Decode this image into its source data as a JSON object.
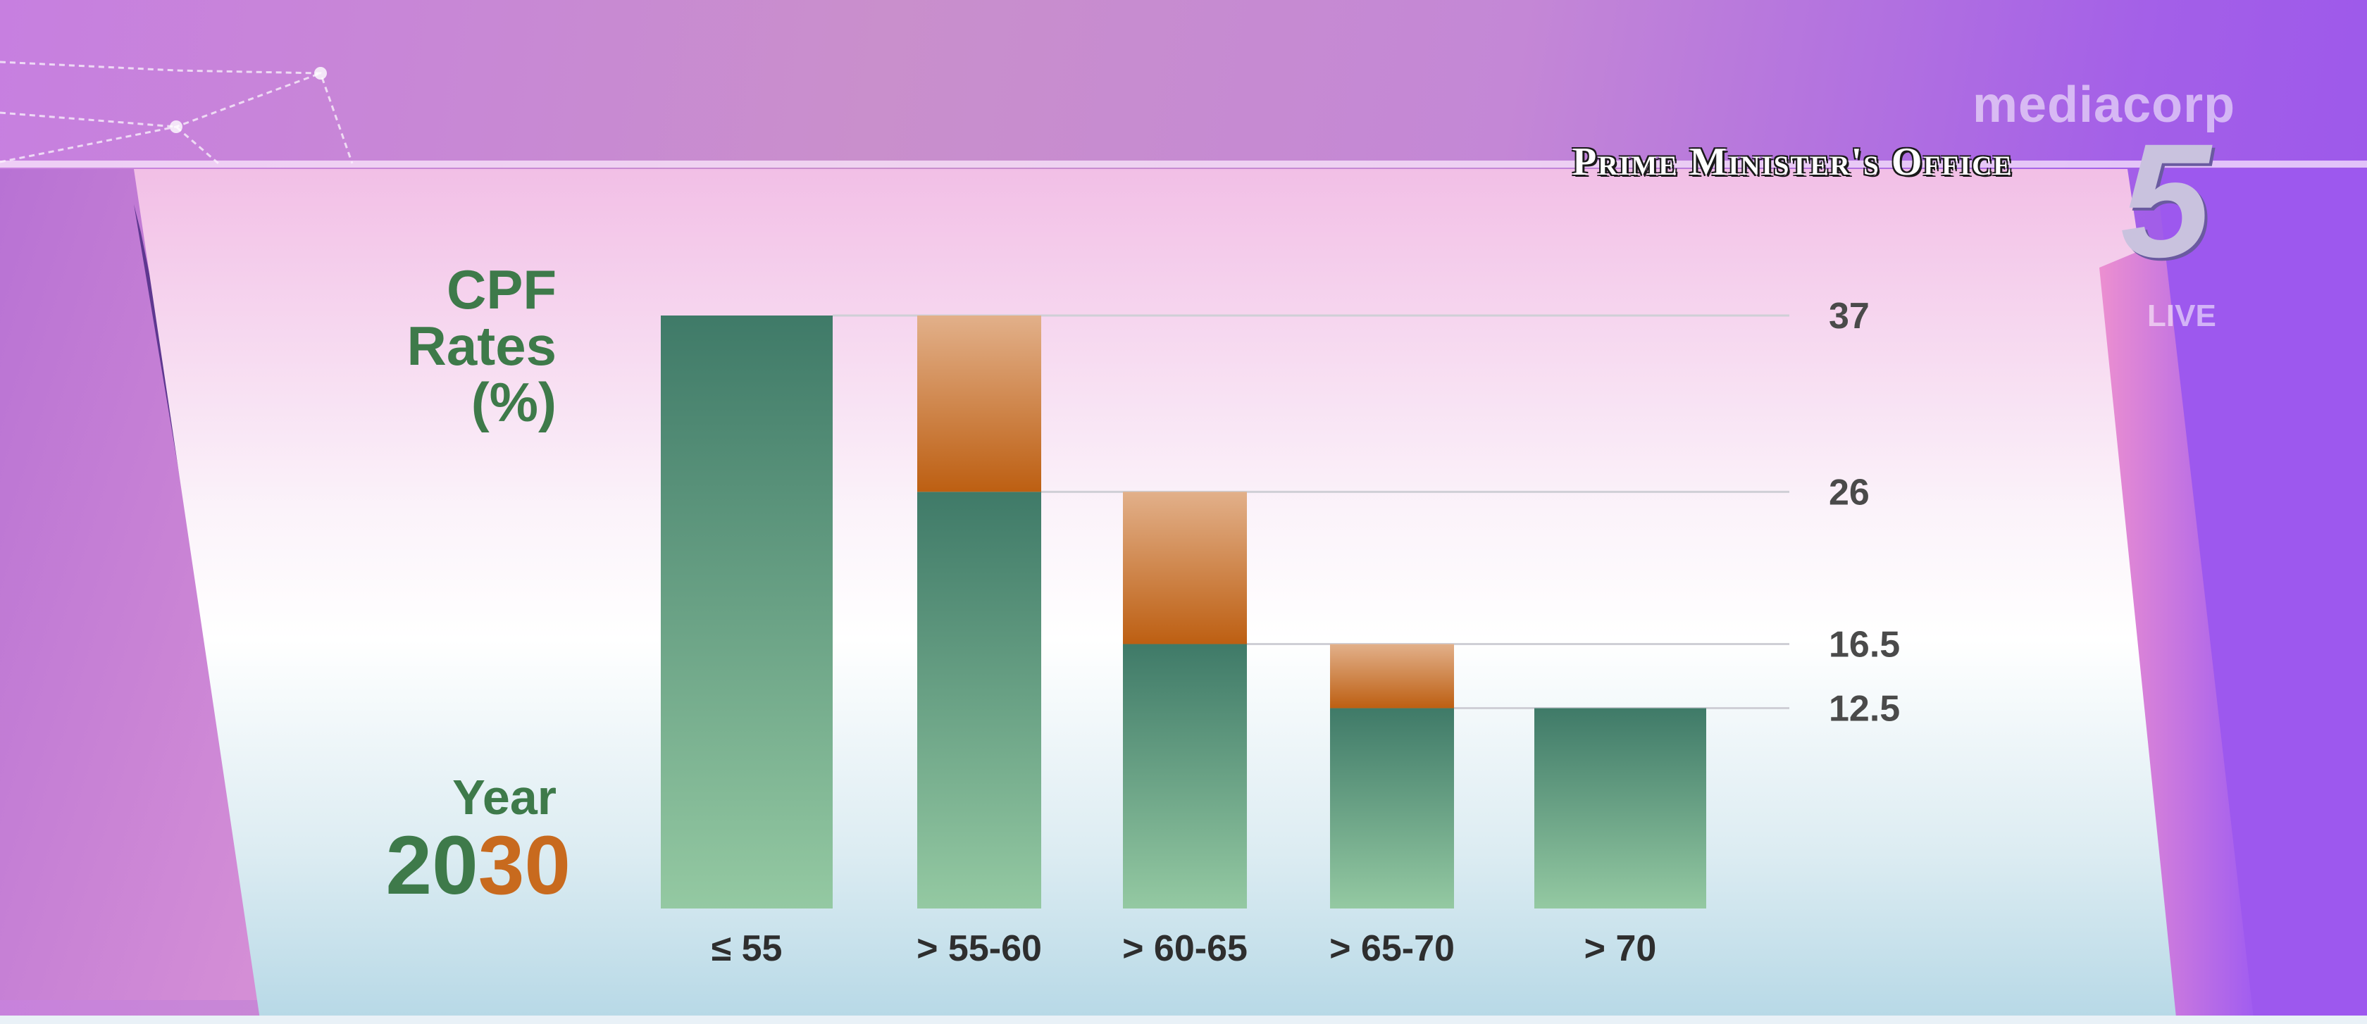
{
  "broadcast": {
    "network_name": "mediacorp",
    "caption": "Prime Minister's Office",
    "channel_number": "5",
    "live_label": "LIVE"
  },
  "chart_heading": {
    "line1": "CPF",
    "line2": "Rates",
    "line3": "(%)"
  },
  "year": {
    "label": "Year",
    "prefix": "20",
    "suffix": "30"
  },
  "colors": {
    "base_green_top": "#3f7a68",
    "base_green_bottom": "#94c9a2",
    "orange_top": "#e2b08a",
    "orange_bottom": "#bd5f12",
    "accent_green_text": "#3e7a4a",
    "accent_orange_text": "#c86a1e"
  },
  "chart_data": {
    "type": "bar",
    "stacked": true,
    "title": "CPF Rates (%)",
    "xlabel": "",
    "ylabel": "CPF Rates (%)",
    "categories": [
      "≤ 55",
      "> 55-60",
      "> 60-65",
      "> 65-70",
      "> 70"
    ],
    "series": [
      {
        "values": [
          37,
          26,
          16.5,
          12.5,
          12.5
        ]
      },
      {
        "values": [
          0,
          11,
          9.5,
          4,
          0
        ]
      }
    ],
    "reference_lines": [
      37,
      26,
      16.5,
      12.5
    ],
    "reference_labels": [
      "37",
      "26",
      "16.5",
      "12.5"
    ],
    "ylim": [
      0,
      37
    ],
    "grid": false,
    "legend": "none"
  }
}
